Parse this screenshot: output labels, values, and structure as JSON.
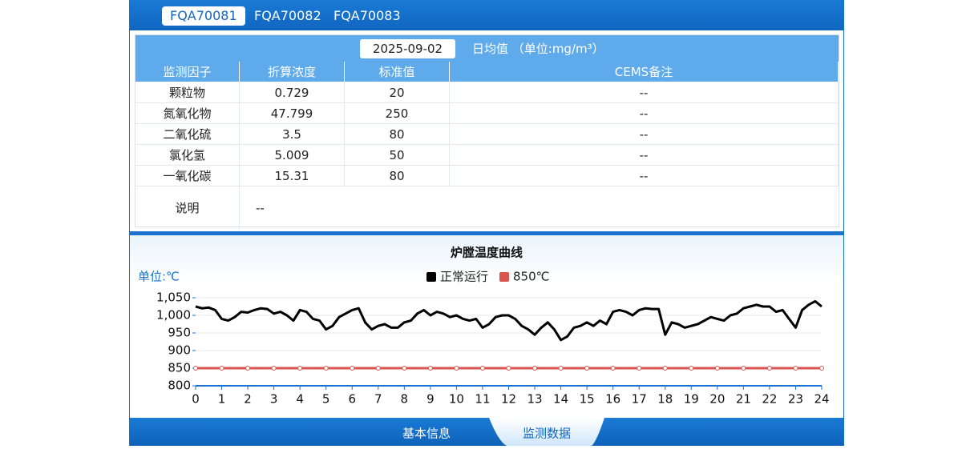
{
  "tabs": [
    "FQA70081",
    "FQA70082",
    "FQA70083"
  ],
  "table": {
    "date": "2025-09-02",
    "caption": "日均值 （单位:mg/m³）",
    "columns": [
      "监测因子",
      "折算浓度",
      "标准值",
      "CEMS备注"
    ],
    "rows": [
      [
        "颗粒物",
        "0.729",
        "20",
        "--"
      ],
      [
        "氮氧化物",
        "47.799",
        "250",
        "--"
      ],
      [
        "二氧化硫",
        "3.5",
        "80",
        "--"
      ],
      [
        "氯化氢",
        "5.009",
        "50",
        "--"
      ],
      [
        "一氧化碳",
        "15.31",
        "80",
        "--"
      ]
    ],
    "note_label": "说明",
    "note": "--"
  },
  "chart_data": {
    "type": "line",
    "title": "炉膛温度曲线",
    "unit_label": "单位:℃",
    "xlim": [
      0,
      24
    ],
    "xticks": [
      0,
      1,
      2,
      3,
      4,
      5,
      6,
      7,
      8,
      9,
      10,
      11,
      12,
      13,
      14,
      15,
      16,
      17,
      18,
      19,
      20,
      21,
      22,
      23,
      24
    ],
    "ylim": [
      800,
      1050
    ],
    "yticks": [
      800,
      850,
      900,
      950,
      {
        "value": 1000,
        "label": "1,000"
      },
      {
        "value": 1050,
        "label": "1,050"
      }
    ],
    "grid": true,
    "series": [
      {
        "name": "正常运行",
        "color": "#000000",
        "markers": false,
        "x": [
          0,
          0.25,
          0.5,
          0.75,
          1,
          1.25,
          1.5,
          1.75,
          2,
          2.25,
          2.5,
          2.75,
          3,
          3.25,
          3.5,
          3.75,
          4,
          4.25,
          4.5,
          4.75,
          5,
          5.25,
          5.5,
          5.75,
          6,
          6.25,
          6.5,
          6.75,
          7,
          7.25,
          7.5,
          7.75,
          8,
          8.25,
          8.5,
          8.75,
          9,
          9.25,
          9.5,
          9.75,
          10,
          10.25,
          10.5,
          10.75,
          11,
          11.25,
          11.5,
          11.75,
          12,
          12.25,
          12.5,
          12.75,
          13,
          13.25,
          13.5,
          13.75,
          14,
          14.25,
          14.5,
          14.75,
          15,
          15.25,
          15.5,
          15.75,
          16,
          16.25,
          16.5,
          16.75,
          17,
          17.25,
          17.5,
          17.75,
          18,
          18.25,
          18.5,
          18.75,
          19,
          19.25,
          19.5,
          19.75,
          20,
          20.25,
          20.5,
          20.75,
          21,
          21.25,
          21.5,
          21.75,
          22,
          22.25,
          22.5,
          22.75,
          23,
          23.25,
          23.5,
          23.75,
          24
        ],
        "values": [
          1025,
          1020,
          1022,
          1015,
          990,
          985,
          995,
          1010,
          1008,
          1015,
          1020,
          1018,
          1005,
          1010,
          1000,
          985,
          1015,
          1010,
          990,
          985,
          960,
          970,
          995,
          1005,
          1015,
          1020,
          980,
          960,
          970,
          975,
          965,
          965,
          980,
          985,
          1005,
          1015,
          1000,
          1010,
          1005,
          995,
          1000,
          990,
          985,
          990,
          965,
          975,
          995,
          1000,
          1000,
          990,
          970,
          960,
          945,
          965,
          980,
          960,
          930,
          940,
          965,
          970,
          980,
          970,
          985,
          975,
          1010,
          1015,
          1010,
          1000,
          1015,
          1020,
          1018,
          1018,
          945,
          980,
          975,
          965,
          970,
          975,
          985,
          995,
          990,
          985,
          1000,
          1005,
          1020,
          1025,
          1030,
          1025,
          1025,
          1010,
          1015,
          990,
          965,
          1015,
          1030,
          1040,
          1025
        ]
      },
      {
        "name": "850℃",
        "color": "#d9534f",
        "markers": true,
        "x": [
          0,
          1,
          2,
          3,
          4,
          5,
          6,
          7,
          8,
          9,
          10,
          11,
          12,
          13,
          14,
          15,
          16,
          17,
          18,
          19,
          20,
          21,
          22,
          23,
          24
        ],
        "values": [
          850,
          850,
          850,
          850,
          850,
          850,
          850,
          850,
          850,
          850,
          850,
          850,
          850,
          850,
          850,
          850,
          850,
          850,
          850,
          850,
          850,
          850,
          850,
          850,
          850
        ]
      }
    ]
  },
  "bottom_tabs": [
    "基本信息",
    "监测数据"
  ]
}
